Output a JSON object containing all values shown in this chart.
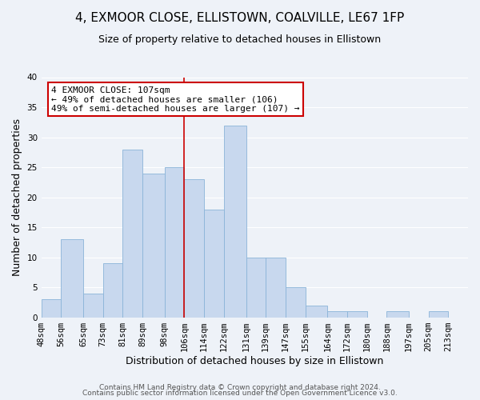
{
  "title": "4, EXMOOR CLOSE, ELLISTOWN, COALVILLE, LE67 1FP",
  "subtitle": "Size of property relative to detached houses in Ellistown",
  "xlabel": "Distribution of detached houses by size in Ellistown",
  "ylabel": "Number of detached properties",
  "bin_labels": [
    "48sqm",
    "56sqm",
    "65sqm",
    "73sqm",
    "81sqm",
    "89sqm",
    "98sqm",
    "106sqm",
    "114sqm",
    "122sqm",
    "131sqm",
    "139sqm",
    "147sqm",
    "155sqm",
    "164sqm",
    "172sqm",
    "180sqm",
    "188sqm",
    "197sqm",
    "205sqm",
    "213sqm"
  ],
  "bin_edges": [
    48,
    56,
    65,
    73,
    81,
    89,
    98,
    106,
    114,
    122,
    131,
    139,
    147,
    155,
    164,
    172,
    180,
    188,
    197,
    205,
    213
  ],
  "bar_heights": [
    3,
    13,
    4,
    9,
    28,
    24,
    25,
    23,
    18,
    32,
    10,
    10,
    5,
    2,
    1,
    1,
    0,
    1,
    0,
    1
  ],
  "bar_color": "#c8d8ee",
  "bar_edge_color": "#8ab4d8",
  "vline_x": 106,
  "vline_color": "#cc0000",
  "annotation_text": "4 EXMOOR CLOSE: 107sqm\n← 49% of detached houses are smaller (106)\n49% of semi-detached houses are larger (107) →",
  "annotation_box_color": "#ffffff",
  "annotation_box_edge": "#cc0000",
  "ylim": [
    0,
    40
  ],
  "yticks": [
    0,
    5,
    10,
    15,
    20,
    25,
    30,
    35,
    40
  ],
  "bg_color": "#eef2f8",
  "footer_line1": "Contains HM Land Registry data © Crown copyright and database right 2024.",
  "footer_line2": "Contains public sector information licensed under the Open Government Licence v3.0.",
  "title_fontsize": 11,
  "subtitle_fontsize": 9,
  "axis_label_fontsize": 9,
  "tick_fontsize": 7.5,
  "annotation_fontsize": 8,
  "footer_fontsize": 6.5
}
